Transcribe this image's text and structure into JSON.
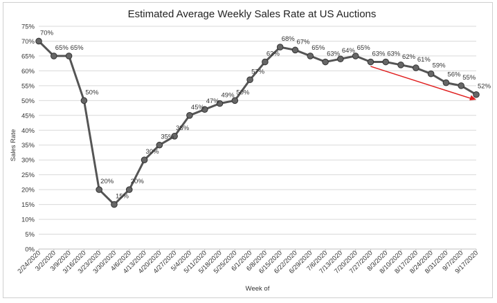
{
  "chart_data": {
    "type": "line",
    "title": "Estimated Average Weekly Sales Rate at US Auctions",
    "xlabel": "Week of",
    "ylabel": "Sales Rate",
    "ylim": [
      0,
      75
    ],
    "y_tick_step": 5,
    "y_tick_suffix": "%",
    "grid": true,
    "legend": "none",
    "x": [
      "2/24/2020",
      "3/2/2020",
      "3/9/2020",
      "3/16/2020",
      "3/23/2020",
      "3/30/2020",
      "4/6/2020",
      "4/13/2020",
      "4/20/2020",
      "4/27/2020",
      "5/4/2020",
      "5/11/2020",
      "5/18/2020",
      "5/25/2020",
      "6/1/2020",
      "6/8/2020",
      "6/15/2020",
      "6/22/2020",
      "6/29/2020",
      "7/6/2020",
      "7/13/2020",
      "7/20/2020",
      "7/27/2020",
      "8/3/2020",
      "8/10/2020",
      "8/17/2020",
      "8/24/2020",
      "8/31/2020",
      "9/7/2020",
      "9/17/2020"
    ],
    "series": [
      {
        "values": [
          70,
          65,
          65,
          50,
          20,
          15,
          20,
          30,
          35,
          38,
          45,
          47,
          49,
          50,
          57,
          63,
          68,
          67,
          65,
          63,
          64,
          65,
          63,
          63,
          62,
          61,
          59,
          56,
          55,
          52
        ],
        "data_labels": [
          "70%",
          "65%",
          "65%",
          "50%",
          "20%",
          "15%",
          "20%",
          "30%",
          "35%",
          "38%",
          "45%",
          "47%",
          "49%",
          "50%",
          "57%",
          "63%",
          "68%",
          "67%",
          "65%",
          "63%",
          "64%",
          "65%",
          "63%",
          "63%",
          "62%",
          "61%",
          "59%",
          "56%",
          "55%",
          "52%"
        ],
        "color": "#555555",
        "marker_color": "#666666"
      }
    ],
    "annotations": [
      {
        "type": "trend-arrow",
        "color": "#e02020",
        "from": {
          "x": "7/27/2020",
          "y": 61.5
        },
        "to": {
          "x": "9/17/2020",
          "y": 50.3
        }
      }
    ]
  }
}
